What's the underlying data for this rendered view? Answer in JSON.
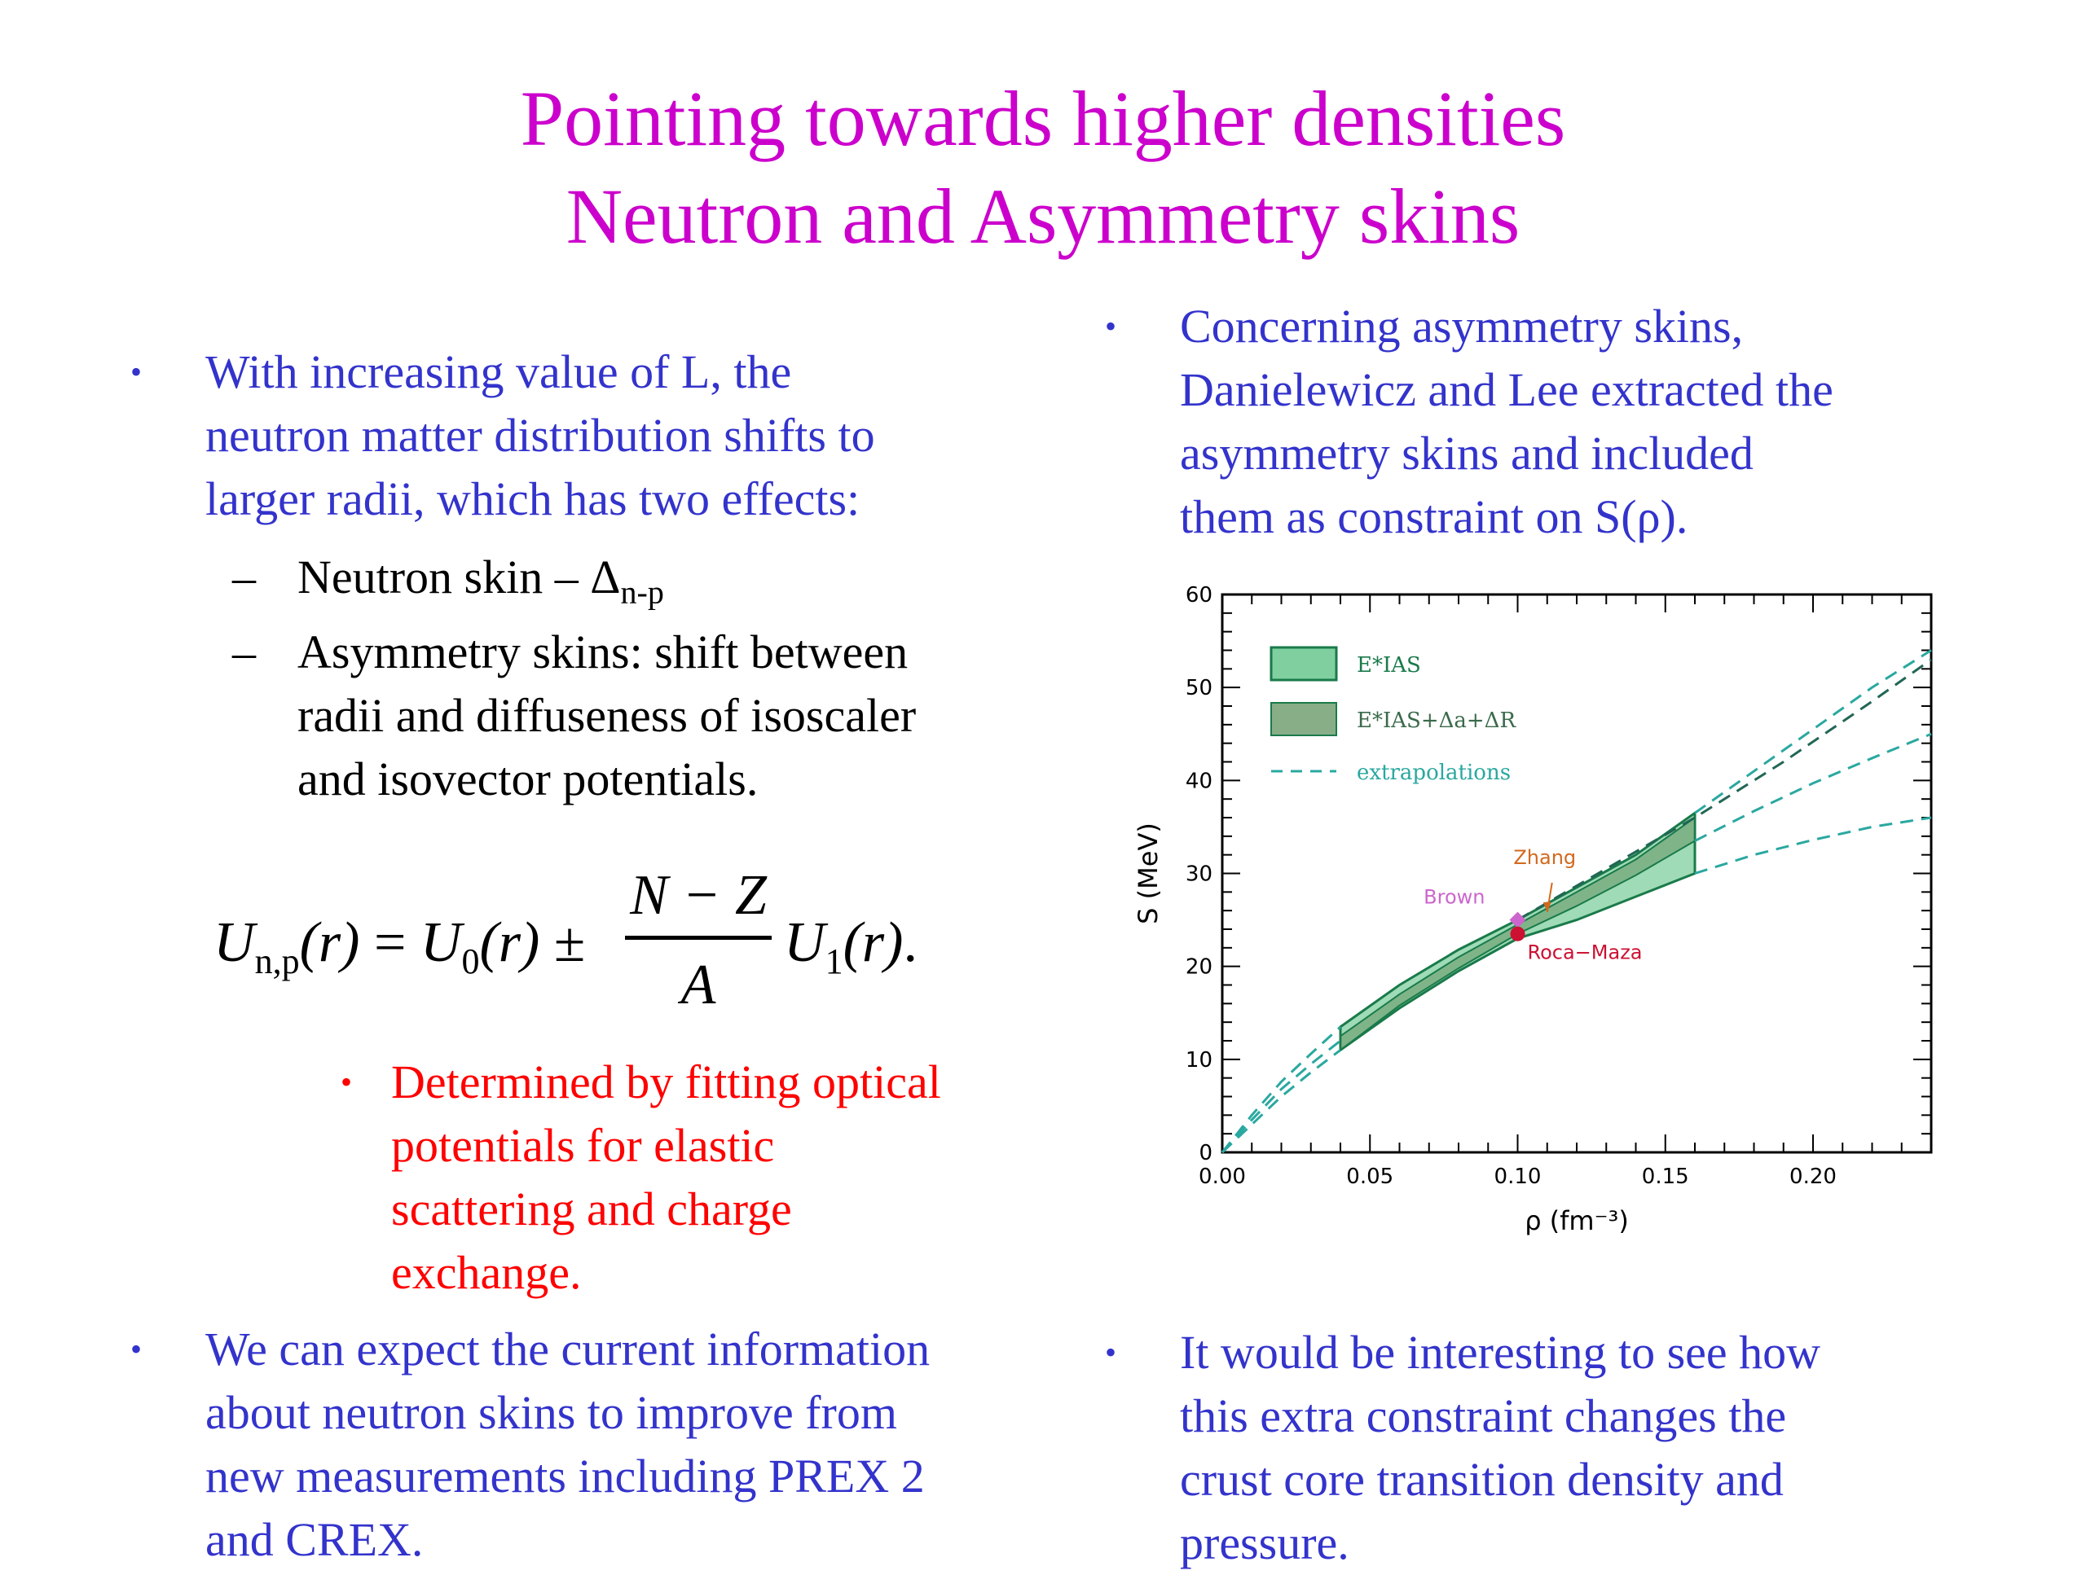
{
  "slide": {
    "title_line1": "Pointing towards higher densities",
    "title_line2": "Neutron and Asymmetry skins"
  },
  "left": {
    "bullet1": [
      "With increasing value of L, the",
      "neutron matter distribution shifts to",
      "larger radii, which has two effects:"
    ],
    "sub1_text": "Neutron skin – Δ",
    "sub1_subscript": "n-p",
    "sub2": [
      "Asymmetry skins: shift between",
      "radii  and diffuseness of isoscaler",
      "and isovector potentials."
    ],
    "formula": {
      "lhs_U": "U",
      "lhs_sub": "n,p",
      "arg": "(r)",
      "eq": "=",
      "U0": "U",
      "U0_sub": "0",
      "pm": "±",
      "num": "N − Z",
      "den": "A",
      "U1": "U",
      "U1_sub": "1",
      "end": "."
    },
    "red_bullet": [
      "Determined by fitting optical",
      "potentials for elastic",
      "scattering and charge",
      "exchange."
    ],
    "bullet2": [
      "We can expect the current information",
      "about neutron skins to improve from",
      "new measurements including PREX 2",
      "and CREX."
    ]
  },
  "right": {
    "bullet1": [
      "Concerning asymmetry skins,",
      "Danielewicz and Lee extracted the",
      "asymmetry skins and included",
      "them as constraint on S(ρ)."
    ],
    "bullet2": [
      "It would be interesting to see how",
      "this extra constraint changes the",
      "crust core transition density and",
      "pressure."
    ]
  },
  "bullet_glyph": "•",
  "dash_glyph": "–",
  "colors": {
    "title": "#cc00cc",
    "body": "#3333cc",
    "red": "#ff0000",
    "band_light": "#7fcf9f",
    "band_dark": "#6a9a6a",
    "line_green": "#1a7a4a",
    "line_teal": "#2aa8a0",
    "zhang": "#d2691e",
    "brown": "#cc66cc",
    "roca": "#cc1133"
  },
  "chart_data": {
    "type": "area",
    "xlabel": "ρ (fm⁻³)",
    "ylabel": "S (MeV)",
    "xlim": [
      0,
      0.24
    ],
    "ylim": [
      0,
      60
    ],
    "xticks": [
      "0.00",
      "0.05",
      "0.10",
      "0.15",
      "0.20"
    ],
    "yticks": [
      "0",
      "10",
      "20",
      "30",
      "40",
      "50",
      "60"
    ],
    "legend": [
      {
        "label": "E*IAS",
        "kind": "band_light"
      },
      {
        "label": "E*IAS+Δa+ΔR",
        "kind": "band_dark"
      },
      {
        "label": "extrapolations",
        "kind": "dashed"
      }
    ],
    "band_light": {
      "x": [
        0.04,
        0.06,
        0.08,
        0.1,
        0.12,
        0.14,
        0.16
      ],
      "upper": [
        13.5,
        18.0,
        21.8,
        25.0,
        28.5,
        32.0,
        36.5
      ],
      "lower": [
        11.0,
        15.5,
        19.5,
        23.0,
        25.0,
        27.5,
        30.0
      ]
    },
    "band_dark": {
      "x": [
        0.04,
        0.06,
        0.08,
        0.1,
        0.12,
        0.14,
        0.16
      ],
      "upper": [
        12.5,
        17.0,
        21.0,
        24.5,
        28.0,
        31.5,
        36.0
      ],
      "lower": [
        11.0,
        15.8,
        19.8,
        23.5,
        26.5,
        29.8,
        33.5
      ]
    },
    "extrapolations": [
      {
        "x": [
          0,
          0.01,
          0.02,
          0.03,
          0.04
        ],
        "y": [
          0,
          4.0,
          7.6,
          10.6,
          13.5
        ]
      },
      {
        "x": [
          0,
          0.01,
          0.02,
          0.03,
          0.04
        ],
        "y": [
          0,
          3.5,
          6.8,
          9.5,
          12.0
        ]
      },
      {
        "x": [
          0,
          0.01,
          0.02,
          0.03,
          0.04
        ],
        "y": [
          0,
          3.0,
          6.0,
          8.6,
          11.0
        ]
      },
      {
        "x": [
          0.16,
          0.18,
          0.2,
          0.22,
          0.24
        ],
        "y": [
          36.5,
          41.0,
          45.5,
          50.0,
          54.0
        ]
      },
      {
        "x": [
          0.1,
          0.13,
          0.16,
          0.19,
          0.22,
          0.24
        ],
        "y": [
          25.0,
          30.5,
          36.0,
          42.0,
          48.5,
          53.0
        ]
      },
      {
        "x": [
          0.16,
          0.18,
          0.2,
          0.22,
          0.24
        ],
        "y": [
          33.5,
          36.7,
          39.7,
          42.4,
          45.0
        ]
      },
      {
        "x": [
          0.16,
          0.18,
          0.2,
          0.22,
          0.24
        ],
        "y": [
          30.0,
          32.0,
          33.6,
          35.0,
          36.0
        ]
      }
    ],
    "points": [
      {
        "name": "Zhang",
        "x": 0.11,
        "y": 25.5
      },
      {
        "name": "Brown",
        "x": 0.1,
        "y": 25.0
      },
      {
        "name": "Roca−Maza",
        "x": 0.1,
        "y": 23.5
      }
    ]
  }
}
